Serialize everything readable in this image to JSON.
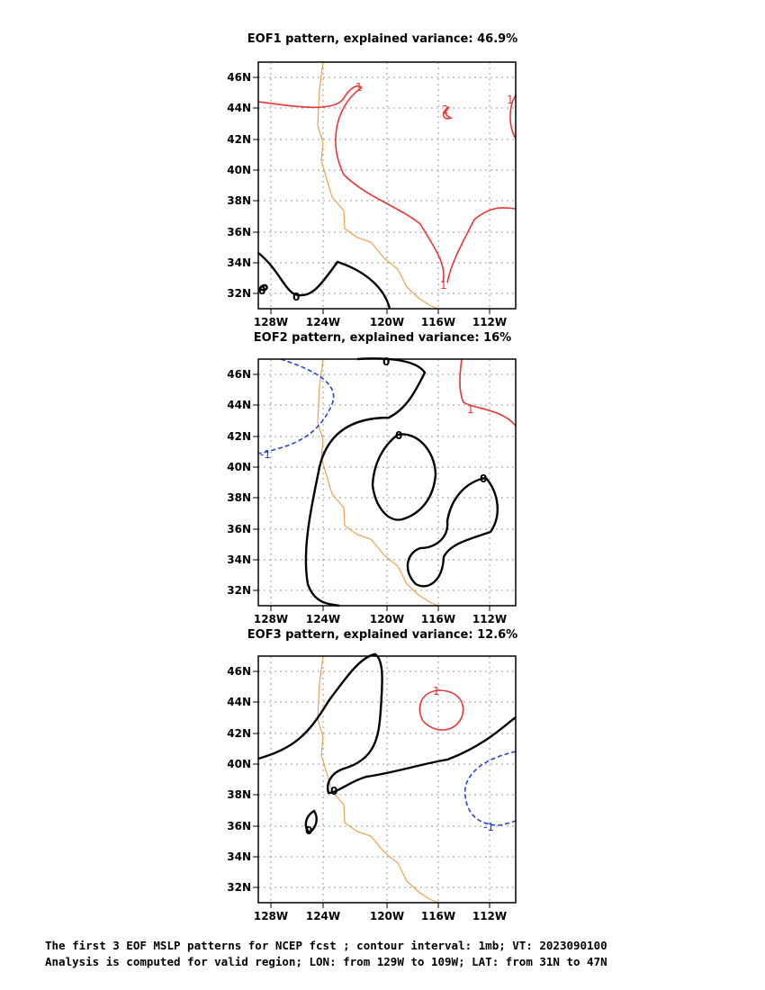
{
  "panels": [
    {
      "title": "EOF1 pattern, explained variance: 46.9%"
    },
    {
      "title": "EOF2 pattern, explained variance: 16%"
    },
    {
      "title": "EOF3 pattern, explained variance: 12.6%"
    }
  ],
  "axes": {
    "lat_ticks": [
      "46N",
      "44N",
      "42N",
      "40N",
      "38N",
      "36N",
      "34N",
      "32N"
    ],
    "lon_ticks": [
      "128W",
      "124W",
      "120W",
      "116W",
      "112W"
    ]
  },
  "contour_labels": {
    "eof1": [
      "1",
      "2",
      "1",
      "1",
      "0",
      "0"
    ],
    "eof2": [
      "1",
      "-1",
      "0",
      "0",
      "0"
    ],
    "eof3": [
      "1",
      "-1",
      "0",
      "0"
    ]
  },
  "colors": {
    "positive": "#ee3333",
    "negative": "#2244dd",
    "zero": "#000000",
    "coastline": "#f0a050",
    "grid": "#999999"
  },
  "caption": {
    "line1": "The first 3 EOF MSLP patterns for NCEP fcst ; contour interval: 1mb; VT: 2023090100",
    "line2": "Analysis is computed for valid region; LON: from 129W to 109W; LAT: from 31N to 47N"
  }
}
